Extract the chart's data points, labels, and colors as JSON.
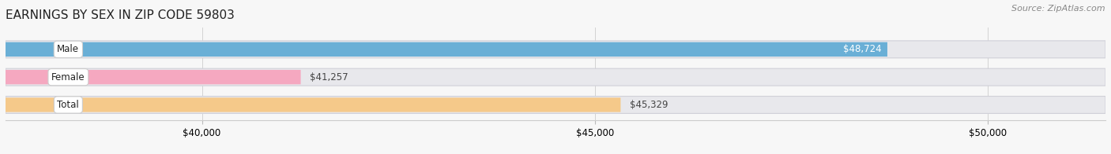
{
  "title": "EARNINGS BY SEX IN ZIP CODE 59803",
  "source_text": "Source: ZipAtlas.com",
  "categories": [
    "Male",
    "Female",
    "Total"
  ],
  "values": [
    48724,
    41257,
    45329
  ],
  "bar_colors": [
    "#6aafd6",
    "#f5a8c0",
    "#f5c98a"
  ],
  "bar_track_color": "#e8e8ec",
  "label_inside": [
    true,
    false,
    false
  ],
  "value_label_colors": [
    "#ffffff",
    "#555555",
    "#555555"
  ],
  "xmin": 37500,
  "xmax": 51500,
  "xticks": [
    40000,
    45000,
    50000
  ],
  "background_color": "#f7f7f7",
  "figsize": [
    14.06,
    1.96
  ],
  "dpi": 100,
  "title_fontsize": 11,
  "source_fontsize": 8,
  "bar_label_fontsize": 8.5,
  "tick_fontsize": 8.5
}
